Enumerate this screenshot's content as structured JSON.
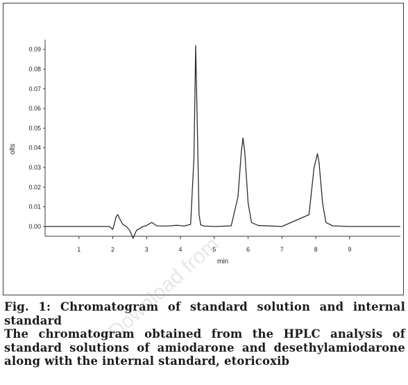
{
  "chart_data": {
    "type": "line",
    "title": "",
    "xlabel": "min",
    "ylabel": "olts",
    "xlim": [
      0,
      10.5
    ],
    "ylim": [
      -0.005,
      0.095
    ],
    "x_ticks": [
      1,
      2,
      3,
      4,
      5,
      6,
      7,
      8,
      9
    ],
    "y_ticks": [
      0.0,
      0.01,
      0.02,
      0.03,
      0.04,
      0.05,
      0.06,
      0.07,
      0.08,
      0.09
    ],
    "y_tick_labels": [
      "0.00",
      "0.01",
      "0.02",
      "0.03",
      "0.04",
      "0.05",
      "0.06",
      "0.07",
      "0.08",
      "0.09"
    ],
    "grid": false,
    "line_color": "#2b2b2b",
    "series": [
      {
        "x": [
          0.0,
          1.9,
          2.0,
          2.05,
          2.1,
          2.15,
          2.2,
          2.3,
          2.4,
          2.5,
          2.55,
          2.6,
          2.65,
          2.7,
          2.8,
          2.9,
          3.0,
          3.1,
          3.15,
          3.2,
          3.3,
          3.5,
          3.7,
          3.9,
          4.1,
          4.3,
          4.4,
          4.45,
          4.5,
          4.55,
          4.6,
          4.7,
          5.0,
          5.5,
          5.7,
          5.8,
          5.85,
          5.9,
          6.0,
          6.1,
          6.3,
          7.0,
          7.8,
          7.95,
          8.05,
          8.1,
          8.2,
          8.3,
          8.5,
          9.0,
          10.5
        ],
        "y": [
          0.0,
          0.0,
          -0.0015,
          0.0015,
          0.005,
          0.006,
          0.004,
          0.001,
          0.0,
          -0.002,
          -0.004,
          -0.006,
          -0.004,
          -0.002,
          -0.001,
          0.0,
          0.0005,
          0.0015,
          0.002,
          0.0015,
          0.0003,
          0.0002,
          0.0003,
          0.0006,
          0.0002,
          0.001,
          0.035,
          0.092,
          0.05,
          0.006,
          0.0008,
          0.0002,
          0.0,
          0.0003,
          0.015,
          0.038,
          0.045,
          0.038,
          0.012,
          0.002,
          0.0005,
          0.0,
          0.006,
          0.03,
          0.037,
          0.032,
          0.012,
          0.002,
          0.0003,
          0.0,
          0.0
        ]
      }
    ]
  },
  "caption": {
    "line1": "Fig. 1: Chromatogram of standard solution and internal",
    "line2": "standard",
    "line3": "The chromatogram obtained from the HPLC analysis of",
    "line4": "standard solutions of amiodarone and desethylamiodarone",
    "line5": "along with the internal standard, etoricoxib"
  },
  "watermark": "Download from"
}
